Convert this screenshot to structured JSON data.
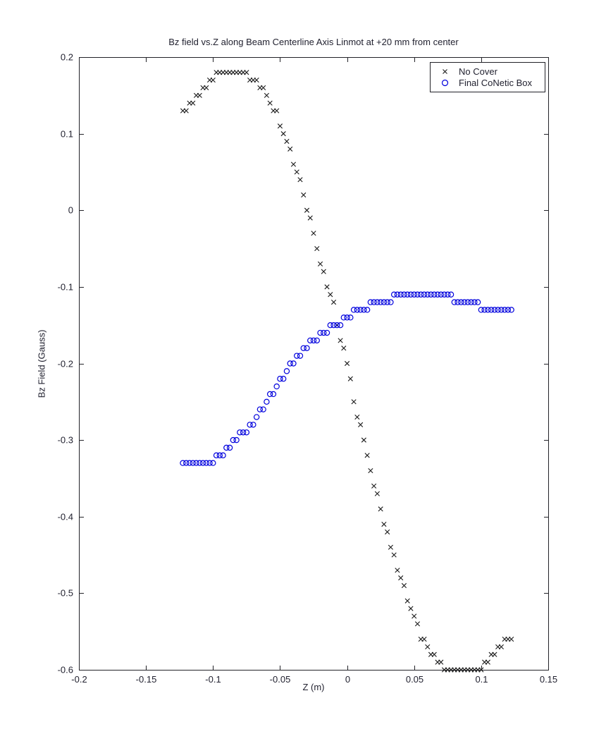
{
  "figure": {
    "title": "Bz field vs.Z along Beam Centerline Axis Linmot at +20 mm from center"
  },
  "colors": {
    "background": "#ffffff",
    "axis": "#222228",
    "text": "#222230",
    "no_cover_marker": "#1a1a1a",
    "conetic_marker": "#0000dd"
  },
  "chart_data": {
    "type": "scatter",
    "title": "Bz field vs.Z along Beam Centerline Axis Linmot at +20 mm from center",
    "xlabel": "Z (m)",
    "ylabel": "Bz Field (Gauss)",
    "xlim": [
      -0.2,
      0.15
    ],
    "ylim": [
      -0.6,
      0.2
    ],
    "grid": false,
    "legend_position": "top-right",
    "x_ticks": [
      -0.2,
      -0.15,
      -0.1,
      -0.05,
      0,
      0.05,
      0.1,
      0.15
    ],
    "x_tick_labels": [
      "-0.2",
      "-0.15",
      "-0.1",
      "-0.05",
      "0",
      "0.05",
      "0.1",
      "0.15"
    ],
    "y_ticks": [
      0.2,
      0.1,
      0,
      -0.1,
      -0.2,
      -0.3,
      -0.4,
      -0.5,
      -0.6
    ],
    "y_tick_labels": [
      "0.2",
      "0.1",
      "0",
      "-0.1",
      "-0.2",
      "-0.3",
      "-0.4",
      "-0.5",
      "-0.6"
    ],
    "series": [
      {
        "name": "No Cover",
        "marker": "x",
        "color": "#1a1a1a",
        "points": [
          [
            -0.1225,
            0.13
          ],
          [
            -0.12,
            0.13
          ],
          [
            -0.1175,
            0.14
          ],
          [
            -0.115,
            0.14
          ],
          [
            -0.1125,
            0.15
          ],
          [
            -0.11,
            0.15
          ],
          [
            -0.1075,
            0.16
          ],
          [
            -0.105,
            0.16
          ],
          [
            -0.1025,
            0.17
          ],
          [
            -0.1,
            0.17
          ],
          [
            -0.0975,
            0.18
          ],
          [
            -0.095,
            0.18
          ],
          [
            -0.0925,
            0.18
          ],
          [
            -0.09,
            0.18
          ],
          [
            -0.0875,
            0.18
          ],
          [
            -0.085,
            0.18
          ],
          [
            -0.0825,
            0.18
          ],
          [
            -0.08,
            0.18
          ],
          [
            -0.0775,
            0.18
          ],
          [
            -0.075,
            0.18
          ],
          [
            -0.0725,
            0.17
          ],
          [
            -0.07,
            0.17
          ],
          [
            -0.0675,
            0.17
          ],
          [
            -0.065,
            0.16
          ],
          [
            -0.0625,
            0.16
          ],
          [
            -0.06,
            0.15
          ],
          [
            -0.0575,
            0.14
          ],
          [
            -0.055,
            0.13
          ],
          [
            -0.0525,
            0.13
          ],
          [
            -0.05,
            0.11
          ],
          [
            -0.0475,
            0.1
          ],
          [
            -0.045,
            0.09
          ],
          [
            -0.0425,
            0.08
          ],
          [
            -0.04,
            0.06
          ],
          [
            -0.0375,
            0.05
          ],
          [
            -0.035,
            0.04
          ],
          [
            -0.0325,
            0.02
          ],
          [
            -0.03,
            0.0
          ],
          [
            -0.0275,
            -0.01
          ],
          [
            -0.025,
            -0.03
          ],
          [
            -0.0225,
            -0.05
          ],
          [
            -0.02,
            -0.07
          ],
          [
            -0.0175,
            -0.08
          ],
          [
            -0.015,
            -0.1
          ],
          [
            -0.0125,
            -0.11
          ],
          [
            -0.01,
            -0.12
          ],
          [
            -0.0075,
            -0.15
          ],
          [
            -0.005,
            -0.17
          ],
          [
            -0.0025,
            -0.18
          ],
          [
            0.0,
            -0.2
          ],
          [
            0.0025,
            -0.22
          ],
          [
            0.005,
            -0.25
          ],
          [
            0.0075,
            -0.27
          ],
          [
            0.01,
            -0.28
          ],
          [
            0.0125,
            -0.3
          ],
          [
            0.015,
            -0.32
          ],
          [
            0.0175,
            -0.34
          ],
          [
            0.02,
            -0.36
          ],
          [
            0.0225,
            -0.37
          ],
          [
            0.025,
            -0.39
          ],
          [
            0.0275,
            -0.41
          ],
          [
            0.03,
            -0.42
          ],
          [
            0.0325,
            -0.44
          ],
          [
            0.035,
            -0.45
          ],
          [
            0.0375,
            -0.47
          ],
          [
            0.04,
            -0.48
          ],
          [
            0.0425,
            -0.49
          ],
          [
            0.045,
            -0.51
          ],
          [
            0.0475,
            -0.52
          ],
          [
            0.05,
            -0.53
          ],
          [
            0.0525,
            -0.54
          ],
          [
            0.055,
            -0.56
          ],
          [
            0.0575,
            -0.56
          ],
          [
            0.06,
            -0.57
          ],
          [
            0.0625,
            -0.58
          ],
          [
            0.065,
            -0.58
          ],
          [
            0.0675,
            -0.59
          ],
          [
            0.07,
            -0.59
          ],
          [
            0.0725,
            -0.6
          ],
          [
            0.075,
            -0.6
          ],
          [
            0.0775,
            -0.6
          ],
          [
            0.08,
            -0.6
          ],
          [
            0.0825,
            -0.6
          ],
          [
            0.085,
            -0.6
          ],
          [
            0.0875,
            -0.6
          ],
          [
            0.09,
            -0.6
          ],
          [
            0.0925,
            -0.6
          ],
          [
            0.095,
            -0.6
          ],
          [
            0.0975,
            -0.6
          ],
          [
            0.1,
            -0.6
          ],
          [
            0.1025,
            -0.59
          ],
          [
            0.105,
            -0.59
          ],
          [
            0.1075,
            -0.58
          ],
          [
            0.11,
            -0.58
          ],
          [
            0.1125,
            -0.57
          ],
          [
            0.115,
            -0.57
          ],
          [
            0.1175,
            -0.56
          ],
          [
            0.12,
            -0.56
          ],
          [
            0.1225,
            -0.56
          ]
        ]
      },
      {
        "name": "Final CoNetic Box",
        "marker": "o",
        "color": "#0000dd",
        "points": [
          [
            -0.1225,
            -0.33
          ],
          [
            -0.12,
            -0.33
          ],
          [
            -0.1175,
            -0.33
          ],
          [
            -0.115,
            -0.33
          ],
          [
            -0.1125,
            -0.33
          ],
          [
            -0.11,
            -0.33
          ],
          [
            -0.1075,
            -0.33
          ],
          [
            -0.105,
            -0.33
          ],
          [
            -0.1025,
            -0.33
          ],
          [
            -0.1,
            -0.33
          ],
          [
            -0.0975,
            -0.32
          ],
          [
            -0.095,
            -0.32
          ],
          [
            -0.0925,
            -0.32
          ],
          [
            -0.09,
            -0.31
          ],
          [
            -0.0875,
            -0.31
          ],
          [
            -0.085,
            -0.3
          ],
          [
            -0.0825,
            -0.3
          ],
          [
            -0.08,
            -0.29
          ],
          [
            -0.0775,
            -0.29
          ],
          [
            -0.075,
            -0.29
          ],
          [
            -0.0725,
            -0.28
          ],
          [
            -0.07,
            -0.28
          ],
          [
            -0.0675,
            -0.27
          ],
          [
            -0.065,
            -0.26
          ],
          [
            -0.0625,
            -0.26
          ],
          [
            -0.06,
            -0.25
          ],
          [
            -0.0575,
            -0.24
          ],
          [
            -0.055,
            -0.24
          ],
          [
            -0.0525,
            -0.23
          ],
          [
            -0.05,
            -0.22
          ],
          [
            -0.0475,
            -0.22
          ],
          [
            -0.045,
            -0.21
          ],
          [
            -0.0425,
            -0.2
          ],
          [
            -0.04,
            -0.2
          ],
          [
            -0.0375,
            -0.19
          ],
          [
            -0.035,
            -0.19
          ],
          [
            -0.0325,
            -0.18
          ],
          [
            -0.03,
            -0.18
          ],
          [
            -0.0275,
            -0.17
          ],
          [
            -0.025,
            -0.17
          ],
          [
            -0.0225,
            -0.17
          ],
          [
            -0.02,
            -0.16
          ],
          [
            -0.0175,
            -0.16
          ],
          [
            -0.015,
            -0.16
          ],
          [
            -0.0125,
            -0.15
          ],
          [
            -0.01,
            -0.15
          ],
          [
            -0.0075,
            -0.15
          ],
          [
            -0.005,
            -0.15
          ],
          [
            -0.0025,
            -0.14
          ],
          [
            0.0,
            -0.14
          ],
          [
            0.0025,
            -0.14
          ],
          [
            0.005,
            -0.13
          ],
          [
            0.0075,
            -0.13
          ],
          [
            0.01,
            -0.13
          ],
          [
            0.0125,
            -0.13
          ],
          [
            0.015,
            -0.13
          ],
          [
            0.0175,
            -0.12
          ],
          [
            0.02,
            -0.12
          ],
          [
            0.0225,
            -0.12
          ],
          [
            0.025,
            -0.12
          ],
          [
            0.0275,
            -0.12
          ],
          [
            0.03,
            -0.12
          ],
          [
            0.0325,
            -0.12
          ],
          [
            0.035,
            -0.11
          ],
          [
            0.0375,
            -0.11
          ],
          [
            0.04,
            -0.11
          ],
          [
            0.0425,
            -0.11
          ],
          [
            0.045,
            -0.11
          ],
          [
            0.0475,
            -0.11
          ],
          [
            0.05,
            -0.11
          ],
          [
            0.0525,
            -0.11
          ],
          [
            0.055,
            -0.11
          ],
          [
            0.0575,
            -0.11
          ],
          [
            0.06,
            -0.11
          ],
          [
            0.0625,
            -0.11
          ],
          [
            0.065,
            -0.11
          ],
          [
            0.0675,
            -0.11
          ],
          [
            0.07,
            -0.11
          ],
          [
            0.0725,
            -0.11
          ],
          [
            0.075,
            -0.11
          ],
          [
            0.0775,
            -0.11
          ],
          [
            0.08,
            -0.12
          ],
          [
            0.0825,
            -0.12
          ],
          [
            0.085,
            -0.12
          ],
          [
            0.0875,
            -0.12
          ],
          [
            0.09,
            -0.12
          ],
          [
            0.0925,
            -0.12
          ],
          [
            0.095,
            -0.12
          ],
          [
            0.0975,
            -0.12
          ],
          [
            0.1,
            -0.13
          ],
          [
            0.1025,
            -0.13
          ],
          [
            0.105,
            -0.13
          ],
          [
            0.1075,
            -0.13
          ],
          [
            0.11,
            -0.13
          ],
          [
            0.1125,
            -0.13
          ],
          [
            0.115,
            -0.13
          ],
          [
            0.1175,
            -0.13
          ],
          [
            0.12,
            -0.13
          ],
          [
            0.1225,
            -0.13
          ]
        ]
      }
    ]
  }
}
